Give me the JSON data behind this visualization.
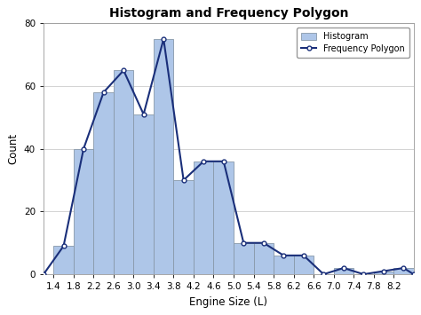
{
  "title": "Histogram and Frequency Polygon",
  "xlabel": "Engine Size (L)",
  "ylabel": "Count",
  "bin_edges": [
    1.4,
    1.8,
    2.2,
    2.6,
    3.0,
    3.4,
    3.8,
    4.2,
    4.6,
    5.0,
    5.4,
    5.8,
    6.2,
    6.6,
    7.0,
    7.4,
    7.8,
    8.2,
    8.6
  ],
  "bar_heights": [
    9,
    40,
    58,
    65,
    51,
    75,
    30,
    36,
    36,
    10,
    10,
    6,
    6,
    0,
    2,
    0,
    1,
    2
  ],
  "poly_x": [
    1.2,
    1.6,
    2.0,
    2.4,
    2.8,
    3.2,
    3.6,
    4.0,
    4.4,
    4.8,
    5.2,
    5.6,
    6.0,
    6.4,
    6.8,
    7.2,
    7.6,
    8.0,
    8.4,
    8.6
  ],
  "poly_y": [
    0,
    9,
    40,
    58,
    65,
    51,
    75,
    30,
    36,
    36,
    10,
    10,
    6,
    6,
    0,
    2,
    0,
    1,
    2,
    0
  ],
  "bar_color": "#aec6e8",
  "bar_edgecolor": "#8899aa",
  "line_color": "#1a2f7a",
  "marker": "o",
  "marker_size": 3.5,
  "ylim": [
    0,
    80
  ],
  "yticks": [
    0,
    20,
    40,
    60,
    80
  ],
  "xticks": [
    1.4,
    1.8,
    2.2,
    2.6,
    3.0,
    3.4,
    3.8,
    4.2,
    4.6,
    5.0,
    5.4,
    5.8,
    6.2,
    6.6,
    7.0,
    7.4,
    7.8,
    8.2
  ],
  "xlim": [
    1.2,
    8.6
  ],
  "title_fontsize": 10,
  "label_fontsize": 8.5,
  "tick_fontsize": 7.5,
  "legend_hist_label": "Histogram",
  "legend_poly_label": "Frequency Polygon",
  "background_color": "#ffffff",
  "grid_color": "#cccccc"
}
